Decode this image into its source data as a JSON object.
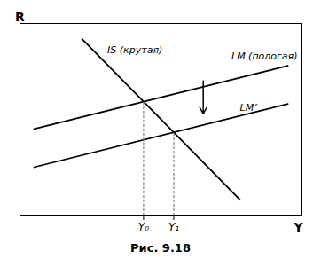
{
  "chart_data": {
    "type": "line",
    "title": "Рис. 9.18",
    "xlabel": "Y",
    "ylabel": "R",
    "xlim": [
      0,
      10
    ],
    "ylim": [
      0,
      10
    ],
    "xticks": [
      {
        "value": 4.38392857,
        "label": "Y₀"
      },
      {
        "value": 5.45535714,
        "label": "Y₁"
      }
    ],
    "yticks": [],
    "grid": false,
    "series": [
      {
        "x": [
          2.2,
          7.8
        ],
        "values": [
          9.2,
          0.8
        ],
        "color": "#000000",
        "line_style": "solid"
      },
      {
        "x": [
          0.5,
          9.5
        ],
        "values": [
          4.5,
          7.8
        ],
        "color": "#000000",
        "line_style": "solid"
      },
      {
        "x": [
          0.5,
          9.5
        ],
        "values": [
          2.5,
          5.8
        ],
        "color": "#000000",
        "line_style": "solid"
      },
      {
        "x": [
          4.38392857,
          4.38392857
        ],
        "values": [
          0,
          5.92410714
        ],
        "color": "#888888",
        "line_style": "dotted"
      },
      {
        "x": [
          5.45535714,
          5.45535714
        ],
        "values": [
          0,
          4.31696429
        ],
        "color": "#888888",
        "line_style": "dotted"
      }
    ],
    "annotations": [
      {
        "text": "IS (крутая)",
        "x": 3.1,
        "y": 8.6
      },
      {
        "text": "LM (пологая)",
        "x": 7.5,
        "y": 8.3
      },
      {
        "text": "LM’",
        "x": 7.8,
        "y": 5.6
      }
    ],
    "arrows": [
      {
        "x": 6.5,
        "y_start": 7.0,
        "y_end": 5.3
      }
    ]
  }
}
